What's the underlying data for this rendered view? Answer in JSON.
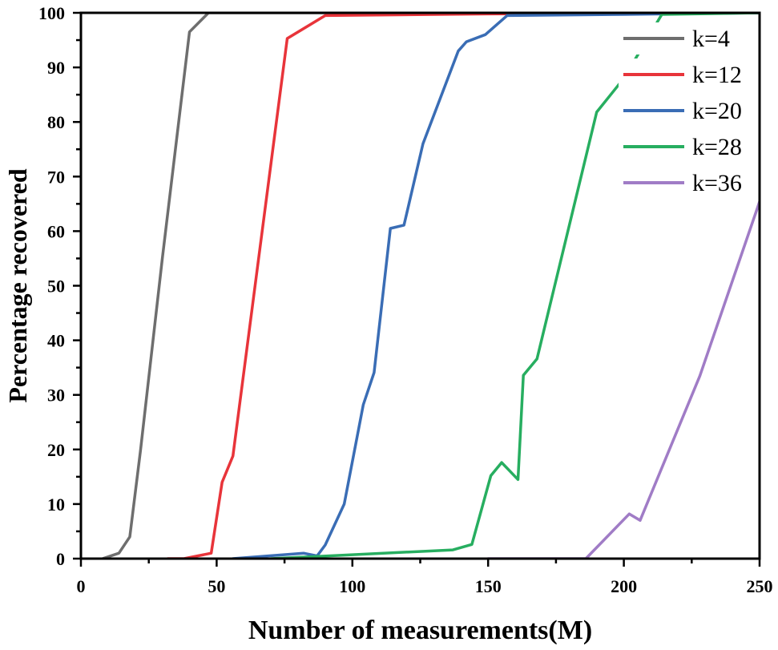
{
  "chart_data": {
    "type": "line",
    "title": "",
    "xlabel": "Number of measurements(M)",
    "ylabel": "Percentage recovered",
    "xlim": [
      0,
      250
    ],
    "ylim": [
      0,
      100
    ],
    "x_ticks": [
      0,
      50,
      100,
      150,
      200,
      250
    ],
    "y_ticks": [
      0,
      10,
      20,
      30,
      40,
      50,
      60,
      70,
      80,
      90,
      100
    ],
    "grid": false,
    "legend_position": "top-right",
    "series": [
      {
        "name": "k=4",
        "color": "#6e6e6e",
        "x": [
          8,
          14,
          18,
          22,
          30,
          40,
          47,
          100,
          250
        ],
        "y": [
          0,
          1,
          4,
          20,
          55,
          96.5,
          100,
          100,
          100
        ]
      },
      {
        "name": "k=12",
        "color": "#e8343a",
        "x": [
          32,
          38,
          48,
          52,
          56,
          76,
          90,
          150,
          250
        ],
        "y": [
          0,
          0,
          1,
          14,
          18.8,
          95.3,
          99.5,
          99.8,
          100
        ]
      },
      {
        "name": "k=20",
        "color": "#3a6db5",
        "x": [
          56,
          82,
          87,
          90,
          97,
          104,
          108,
          114,
          119,
          126,
          139,
          142,
          149,
          157,
          200,
          250
        ],
        "y": [
          0,
          1,
          0.5,
          2.5,
          10,
          28.2,
          34.1,
          60.5,
          61.1,
          76,
          93,
          94.7,
          96,
          99.5,
          99.7,
          100
        ]
      },
      {
        "name": "k=28",
        "color": "#27ae60",
        "x": [
          70,
          137,
          144,
          151,
          155,
          161,
          163,
          168,
          190,
          200,
          214,
          250
        ],
        "y": [
          0,
          1.6,
          2.6,
          15.2,
          17.6,
          14.5,
          33.6,
          36.6,
          81.8,
          88,
          99.7,
          100
        ]
      },
      {
        "name": "k=36",
        "color": "#a07cc6",
        "x": [
          150,
          186,
          202,
          206,
          228,
          250
        ],
        "y": [
          0,
          0,
          8.2,
          7,
          33.5,
          65.4
        ]
      }
    ]
  }
}
